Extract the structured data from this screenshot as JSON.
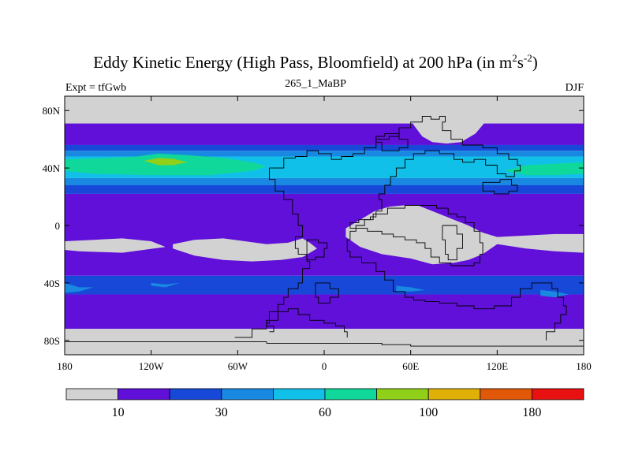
{
  "chart_data": {
    "type": "heatmap",
    "title": {
      "main": "Eddy Kinetic Energy (High Pass, Bloomfield) at 200 hPa (in m",
      "sup1": "2",
      "mid": "s",
      "sup2": "-2",
      "end": ")"
    },
    "subtitle": "265_1_MaBP",
    "left_label": "Expt = tfGwb",
    "right_label": "DJF",
    "xlim": [
      -180,
      180
    ],
    "ylim": [
      -90,
      90
    ],
    "x_ticks": [
      {
        "value": -180,
        "label": "180"
      },
      {
        "value": -120,
        "label": "120W"
      },
      {
        "value": -60,
        "label": "60W"
      },
      {
        "value": 0,
        "label": "0"
      },
      {
        "value": 60,
        "label": "60E"
      },
      {
        "value": 120,
        "label": "120E"
      },
      {
        "value": 180,
        "label": "180"
      }
    ],
    "y_ticks": [
      {
        "value": 80,
        "label": "80N"
      },
      {
        "value": 40,
        "label": "40N"
      },
      {
        "value": 0,
        "label": "0"
      },
      {
        "value": -40,
        "label": "40S"
      },
      {
        "value": -80,
        "label": "80S"
      }
    ],
    "colorbar": {
      "colors": [
        "#d2d2d2",
        "#6010d8",
        "#1848d8",
        "#1888e0",
        "#10c0e8",
        "#10d89a",
        "#90d018",
        "#e0b008",
        "#e05808",
        "#e81010"
      ],
      "labels": [
        {
          "after_bin": 1,
          "label": "10"
        },
        {
          "after_bin": 3,
          "label": "30"
        },
        {
          "after_bin": 5,
          "label": "60"
        },
        {
          "after_bin": 7,
          "label": "100"
        },
        {
          "after_bin": 9,
          "label": "180"
        }
      ]
    },
    "zonal_bands": [
      {
        "lat_top": 90,
        "lat_bot": 71,
        "level": 0
      },
      {
        "lat_top": 71,
        "lat_bot": 56,
        "level": 1
      },
      {
        "lat_top": 56,
        "lat_bot": 52,
        "level": 2
      },
      {
        "lat_top": 52,
        "lat_bot": 48,
        "level": 3
      },
      {
        "lat_top": 48,
        "lat_bot": 33,
        "level": 4
      },
      {
        "lat_top": 33,
        "lat_bot": 28,
        "level": 3
      },
      {
        "lat_top": 28,
        "lat_bot": 22,
        "level": 2
      },
      {
        "lat_top": 22,
        "lat_bot": -35,
        "level": 1
      },
      {
        "lat_top": -35,
        "lat_bot": -48,
        "level": 2
      },
      {
        "lat_top": -48,
        "lat_bot": -72,
        "level": 1
      },
      {
        "lat_top": -72,
        "lat_bot": -90,
        "level": 0
      }
    ],
    "regions": [
      {
        "level": 5,
        "points": [
          [
            -180,
            46
          ],
          [
            -150,
            47
          ],
          [
            -130,
            48
          ],
          [
            -115,
            50
          ],
          [
            -95,
            49
          ],
          [
            -70,
            47
          ],
          [
            -50,
            44
          ],
          [
            -40,
            41
          ],
          [
            -50,
            38
          ],
          [
            -80,
            35
          ],
          [
            -120,
            35
          ],
          [
            -160,
            36
          ],
          [
            -180,
            38
          ]
        ]
      },
      {
        "level": 6,
        "points": [
          [
            -125,
            45
          ],
          [
            -115,
            47
          ],
          [
            -105,
            46.5
          ],
          [
            -95,
            44
          ],
          [
            -105,
            42
          ],
          [
            -115,
            42
          ]
        ]
      },
      {
        "level": 5,
        "points": [
          [
            125,
            38
          ],
          [
            140,
            42
          ],
          [
            160,
            43
          ],
          [
            180,
            44
          ],
          [
            180,
            36
          ],
          [
            160,
            35
          ],
          [
            140,
            35
          ]
        ]
      },
      {
        "level": 3,
        "points": [
          [
            -180,
            -40
          ],
          [
            -170,
            -43
          ],
          [
            -160,
            -43
          ],
          [
            -170,
            -46
          ],
          [
            -180,
            -47
          ]
        ]
      },
      {
        "level": 3,
        "points": [
          [
            -120,
            -40
          ],
          [
            -110,
            -41
          ],
          [
            -100,
            -40
          ],
          [
            -110,
            -43
          ],
          [
            -120,
            -42
          ]
        ]
      },
      {
        "level": 3,
        "points": [
          [
            50,
            -42
          ],
          [
            60,
            -43
          ],
          [
            70,
            -45
          ],
          [
            60,
            -46
          ],
          [
            50,
            -46
          ]
        ]
      },
      {
        "level": 3,
        "points": [
          [
            150,
            -45
          ],
          [
            160,
            -46
          ],
          [
            170,
            -48
          ],
          [
            160,
            -50
          ],
          [
            150,
            -49
          ]
        ]
      },
      {
        "level": 0,
        "points": [
          [
            -180,
            -11
          ],
          [
            -160,
            -10
          ],
          [
            -140,
            -9
          ],
          [
            -120,
            -11
          ],
          [
            -110,
            -15
          ],
          [
            -140,
            -19
          ],
          [
            -170,
            -18
          ],
          [
            -180,
            -17
          ]
        ]
      },
      {
        "level": 0,
        "points": [
          [
            -105,
            -13
          ],
          [
            -90,
            -10
          ],
          [
            -70,
            -9
          ],
          [
            -55,
            -11
          ],
          [
            -40,
            -13
          ],
          [
            -25,
            -12
          ],
          [
            -15,
            -9
          ],
          [
            -10,
            -12
          ],
          [
            -5,
            -16
          ],
          [
            -15,
            -22
          ],
          [
            -30,
            -24
          ],
          [
            -50,
            -25
          ],
          [
            -70,
            -24
          ],
          [
            -90,
            -21
          ],
          [
            -105,
            -16
          ]
        ]
      },
      {
        "level": 0,
        "points": [
          [
            15,
            -2
          ],
          [
            25,
            4
          ],
          [
            35,
            10
          ],
          [
            45,
            13
          ],
          [
            55,
            14
          ],
          [
            65,
            14
          ],
          [
            75,
            10
          ],
          [
            90,
            4
          ],
          [
            100,
            0
          ],
          [
            110,
            -5
          ],
          [
            120,
            -8
          ],
          [
            140,
            -7
          ],
          [
            160,
            -6
          ],
          [
            180,
            -6
          ],
          [
            180,
            -19
          ],
          [
            160,
            -18
          ],
          [
            140,
            -16
          ],
          [
            120,
            -13
          ],
          [
            110,
            -20
          ],
          [
            100,
            -24
          ],
          [
            90,
            -26
          ],
          [
            75,
            -27
          ],
          [
            60,
            -23
          ],
          [
            40,
            -20
          ],
          [
            25,
            -15
          ],
          [
            15,
            -8
          ]
        ]
      },
      {
        "level": 0,
        "points": [
          [
            58,
            90
          ],
          [
            58,
            86
          ],
          [
            62,
            70
          ],
          [
            68,
            62
          ],
          [
            75,
            58
          ],
          [
            85,
            57
          ],
          [
            95,
            58
          ],
          [
            105,
            64
          ],
          [
            115,
            76
          ],
          [
            118,
            86
          ],
          [
            120,
            90
          ]
        ]
      }
    ],
    "outline_polylines": [
      [
        [
          -38,
          -74
        ],
        [
          -35,
          -70
        ],
        [
          -40,
          -68
        ],
        [
          -38,
          -60
        ],
        [
          -32,
          -55
        ],
        [
          -28,
          -50
        ],
        [
          -25,
          -44
        ],
        [
          -18,
          -40
        ],
        [
          -15,
          -30
        ],
        [
          -10,
          -25
        ],
        [
          -12,
          -20
        ],
        [
          -18,
          -16
        ],
        [
          -20,
          -8
        ],
        [
          -15,
          0
        ],
        [
          -18,
          8
        ],
        [
          -22,
          18
        ],
        [
          -28,
          24
        ],
        [
          -34,
          32
        ],
        [
          -38,
          40
        ],
        [
          -28,
          47
        ],
        [
          -20,
          48
        ],
        [
          -12,
          52
        ],
        [
          -4,
          50
        ],
        [
          5,
          46
        ],
        [
          12,
          48
        ],
        [
          20,
          50
        ],
        [
          28,
          54
        ],
        [
          36,
          60
        ],
        [
          45,
          62
        ],
        [
          52,
          68
        ],
        [
          60,
          72
        ],
        [
          68,
          76
        ],
        [
          74,
          74
        ],
        [
          80,
          76
        ],
        [
          84,
          72
        ],
        [
          82,
          66
        ],
        [
          88,
          60
        ],
        [
          96,
          56
        ],
        [
          110,
          54
        ],
        [
          120,
          50
        ],
        [
          128,
          46
        ],
        [
          134,
          42
        ],
        [
          136,
          38
        ],
        [
          132,
          34
        ],
        [
          126,
          36
        ],
        [
          120,
          42
        ],
        [
          112,
          46
        ],
        [
          104,
          44
        ],
        [
          96,
          46
        ],
        [
          90,
          50
        ],
        [
          80,
          52
        ],
        [
          70,
          50
        ],
        [
          62,
          46
        ],
        [
          56,
          40
        ],
        [
          50,
          34
        ],
        [
          46,
          28
        ],
        [
          42,
          22
        ],
        [
          38,
          18
        ],
        [
          40,
          10
        ],
        [
          36,
          6
        ],
        [
          32,
          4
        ],
        [
          28,
          0
        ],
        [
          22,
          -4
        ],
        [
          18,
          -10
        ],
        [
          16,
          -18
        ],
        [
          18,
          -22
        ],
        [
          26,
          -26
        ],
        [
          36,
          -32
        ],
        [
          42,
          -38
        ],
        [
          48,
          -46
        ],
        [
          56,
          -50
        ],
        [
          62,
          -52
        ],
        [
          70,
          -53
        ],
        [
          80,
          -54
        ],
        [
          92,
          -56
        ],
        [
          104,
          -58
        ],
        [
          118,
          -56
        ],
        [
          130,
          -50
        ],
        [
          136,
          -44
        ],
        [
          144,
          -40
        ],
        [
          152,
          -40
        ],
        [
          158,
          -44
        ],
        [
          162,
          -50
        ],
        [
          166,
          -56
        ],
        [
          168,
          -62
        ],
        [
          164,
          -68
        ],
        [
          160,
          -74
        ],
        [
          154,
          -80
        ]
      ],
      [
        [
          -62,
          -78
        ],
        [
          -50,
          -72
        ],
        [
          -40,
          -66
        ],
        [
          -32,
          -60
        ],
        [
          -25,
          -58
        ],
        [
          -18,
          -62
        ],
        [
          -10,
          -66
        ],
        [
          0,
          -68
        ],
        [
          8,
          -70
        ],
        [
          14,
          -74
        ],
        [
          16,
          -78
        ]
      ],
      [
        [
          -40,
          -82
        ],
        [
          -20,
          -82
        ],
        [
          0,
          -82
        ],
        [
          20,
          -82
        ],
        [
          40,
          -83
        ],
        [
          60,
          -84
        ],
        [
          80,
          -84
        ],
        [
          100,
          -84
        ],
        [
          120,
          -84
        ],
        [
          140,
          -84
        ],
        [
          160,
          -84
        ],
        [
          180,
          -84
        ]
      ],
      [
        [
          -180,
          -81
        ],
        [
          -160,
          -81
        ],
        [
          -140,
          -81
        ],
        [
          -120,
          -81
        ],
        [
          -100,
          -81
        ],
        [
          -80,
          -81
        ],
        [
          -60,
          -81
        ],
        [
          -40,
          -82
        ]
      ],
      [
        [
          18,
          -2
        ],
        [
          30,
          -4
        ],
        [
          40,
          -6
        ],
        [
          48,
          -8
        ],
        [
          56,
          -10
        ],
        [
          64,
          -12
        ],
        [
          70,
          -16
        ],
        [
          74,
          -22
        ],
        [
          80,
          -26
        ],
        [
          88,
          -28
        ],
        [
          96,
          -28
        ],
        [
          104,
          -26
        ],
        [
          108,
          -20
        ],
        [
          110,
          -12
        ],
        [
          108,
          -4
        ],
        [
          104,
          2
        ],
        [
          98,
          6
        ],
        [
          92,
          8
        ],
        [
          86,
          12
        ],
        [
          78,
          14
        ],
        [
          68,
          14
        ],
        [
          56,
          12
        ],
        [
          44,
          8
        ],
        [
          34,
          4
        ],
        [
          24,
          2
        ],
        [
          18,
          -2
        ]
      ],
      [
        [
          82,
          0
        ],
        [
          92,
          -6
        ],
        [
          96,
          -16
        ],
        [
          92,
          -24
        ],
        [
          86,
          -20
        ],
        [
          84,
          -10
        ],
        [
          82,
          0
        ]
      ],
      [
        [
          -12,
          -10
        ],
        [
          -4,
          -12
        ],
        [
          2,
          -16
        ],
        [
          0,
          -22
        ],
        [
          -6,
          -24
        ],
        [
          -12,
          -20
        ],
        [
          -12,
          -10
        ]
      ],
      [
        [
          110,
          30
        ],
        [
          122,
          32
        ],
        [
          130,
          28
        ],
        [
          134,
          24
        ],
        [
          128,
          22
        ],
        [
          118,
          24
        ],
        [
          110,
          30
        ]
      ],
      [
        [
          -6,
          -40
        ],
        [
          4,
          -44
        ],
        [
          10,
          -50
        ],
        [
          4,
          -54
        ],
        [
          -4,
          -50
        ],
        [
          -6,
          -40
        ]
      ],
      [
        [
          40,
          52
        ],
        [
          52,
          54
        ],
        [
          58,
          60
        ],
        [
          52,
          64
        ],
        [
          42,
          62
        ],
        [
          36,
          58
        ],
        [
          40,
          52
        ]
      ]
    ]
  }
}
